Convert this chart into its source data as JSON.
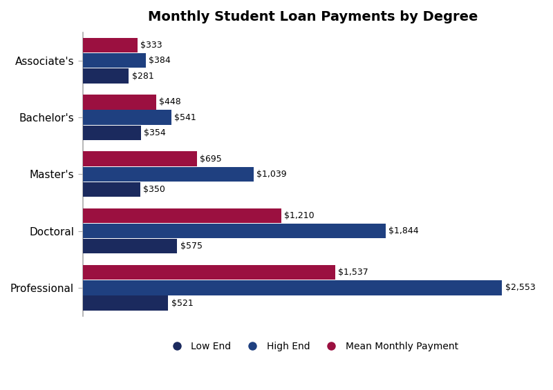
{
  "title": "Monthly Student Loan Payments by Degree",
  "categories": [
    "Associate's",
    "Bachelor's",
    "Master's",
    "Doctoral",
    "Professional"
  ],
  "low_end": [
    281,
    354,
    350,
    575,
    521
  ],
  "high_end": [
    384,
    541,
    1039,
    1844,
    2553
  ],
  "mean": [
    333,
    448,
    695,
    1210,
    1537
  ],
  "color_low": "#1b2a5e",
  "color_high": "#1f4080",
  "color_mean": "#9b1040",
  "bar_height": 0.26,
  "bar_gap": 0.01,
  "label_low": "Low End",
  "label_high": "High End",
  "label_mean": "Mean Monthly Payment",
  "background_color": "#ffffff",
  "grid_color": "#d0d0d0",
  "xlim": [
    0,
    2800
  ],
  "label_fontsize": 9,
  "title_fontsize": 14,
  "ytick_fontsize": 11
}
